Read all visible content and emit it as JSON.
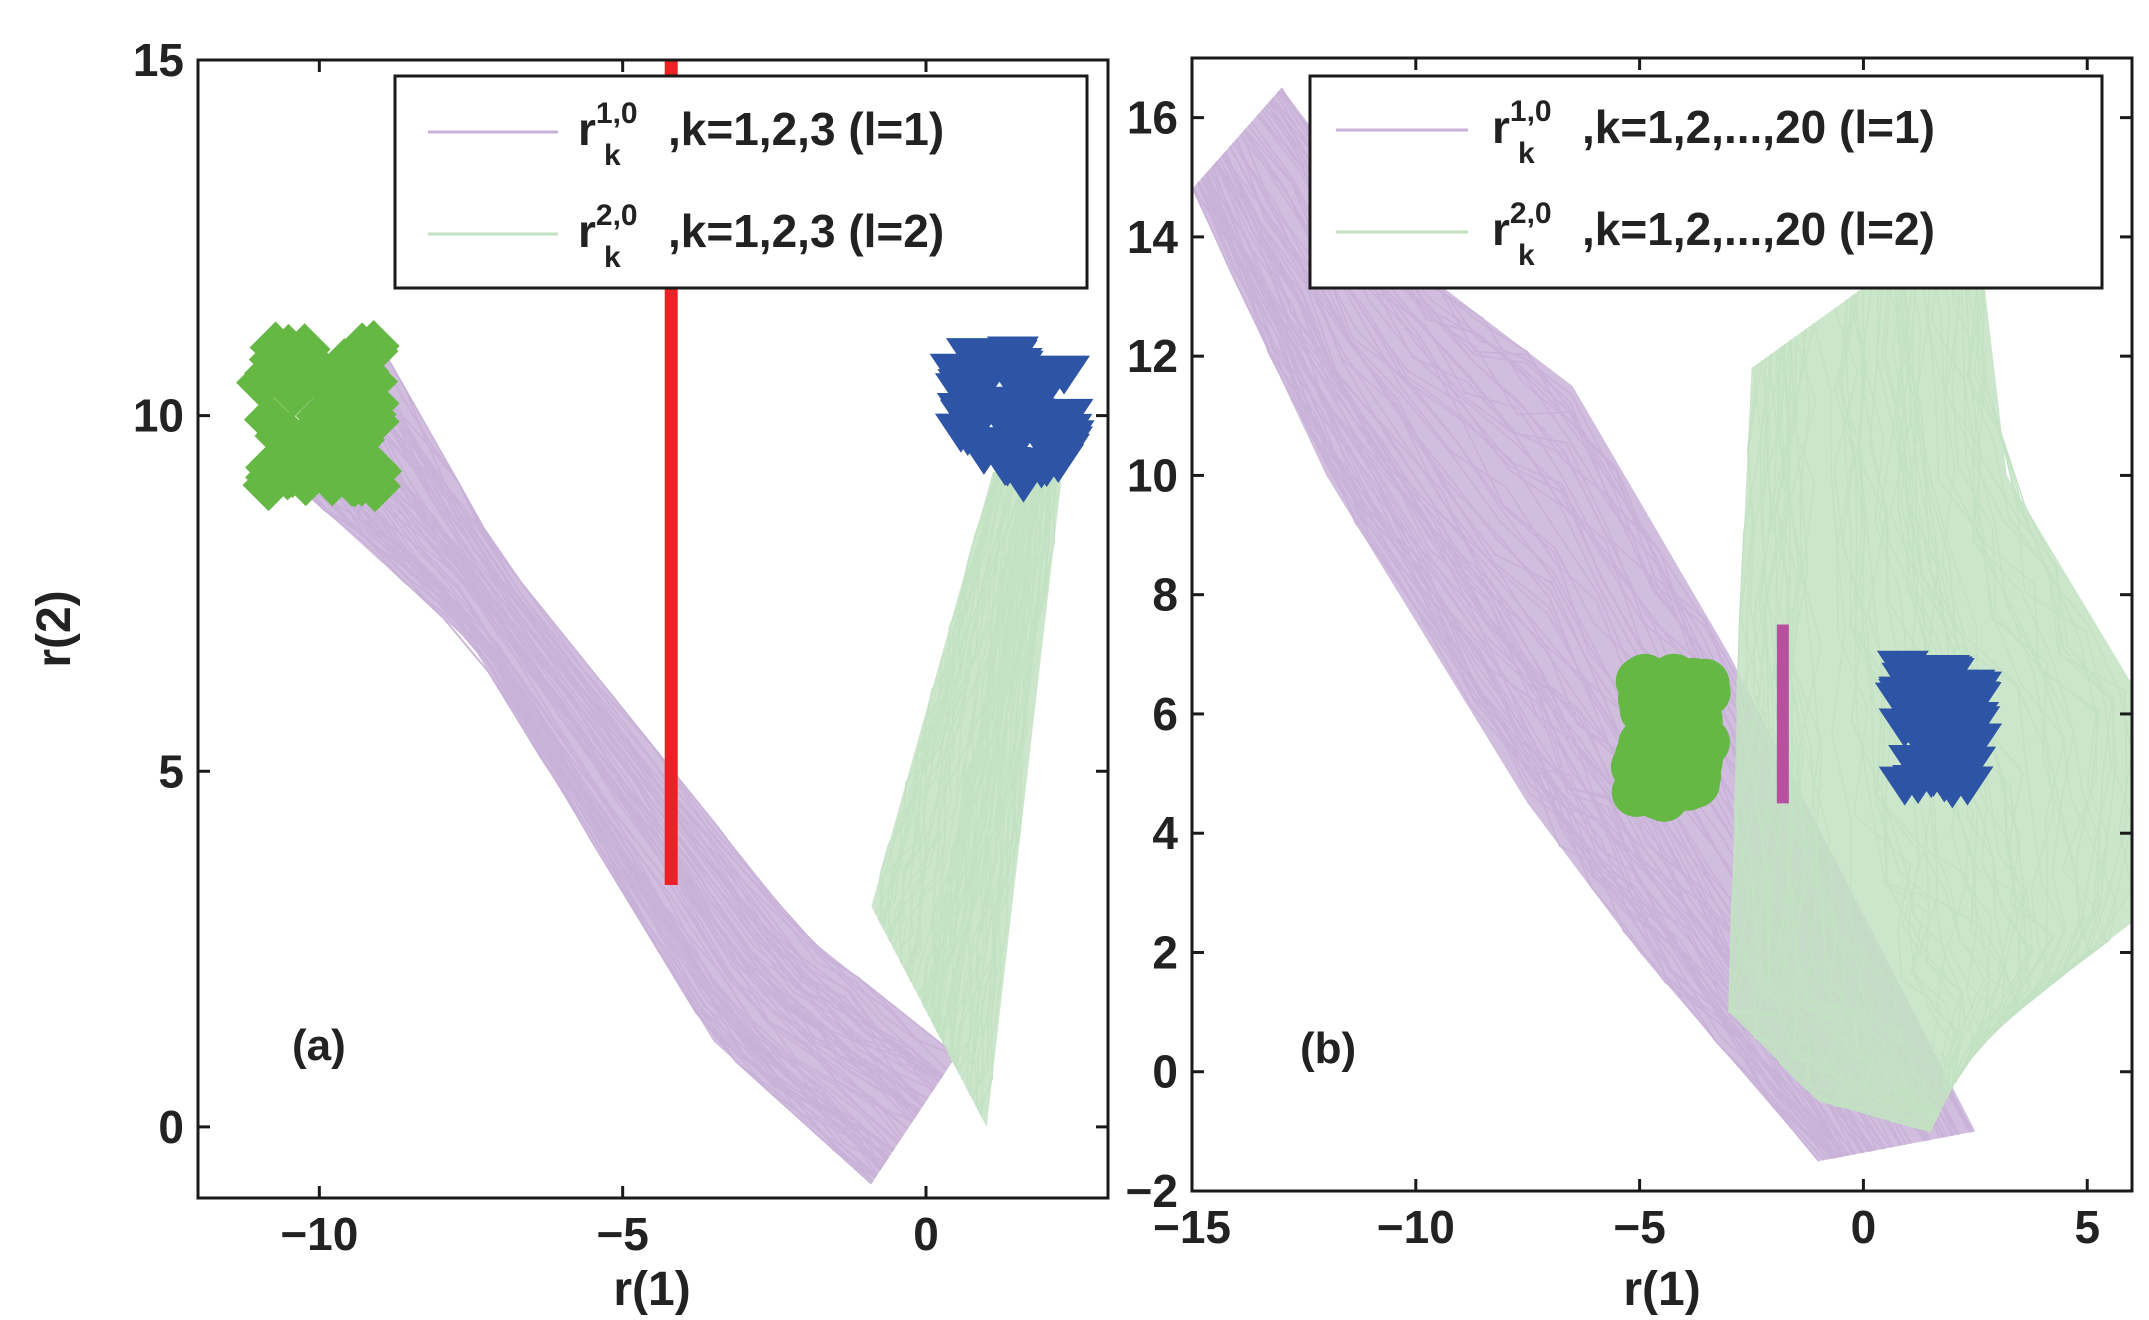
{
  "chart_data": [
    {
      "type": "line",
      "panel": "(a)",
      "xlabel": "r(1)",
      "ylabel": "r(2)",
      "xlim": [
        -12,
        3
      ],
      "ylim": [
        -1,
        15
      ],
      "xticks": [
        -10,
        -5,
        0
      ],
      "yticks": [
        0,
        5,
        10,
        15
      ],
      "xtick_labels": [
        "−10",
        "−5",
        "0"
      ],
      "ytick_labels": [
        "0",
        "5",
        "10",
        "15"
      ],
      "legend": [
        {
          "base": "r",
          "sub": "k",
          "sup": "1,0",
          "rest": ",k=1,2,3 (l=1)",
          "color": "#c9b2d8"
        },
        {
          "base": "r",
          "sub": "k",
          "sup": "2,0",
          "rest": ",k=1,2,3 (l=2)",
          "color": "#c3e2c3"
        }
      ],
      "series": [
        {
          "name": "l=1 trajectories",
          "color": "#c9b2d8",
          "shape": "band",
          "left": [
            [
              -10.6,
              9.2
            ],
            [
              -7.5,
              6.8
            ],
            [
              -3.5,
              1.2
            ],
            [
              -0.9,
              -0.8
            ]
          ],
          "right": [
            [
              -9.0,
              11.0
            ],
            [
              -7.0,
              8.0
            ],
            [
              -2.0,
              2.7
            ],
            [
              0.5,
              1.0
            ]
          ]
        },
        {
          "name": "l=2 trajectories",
          "color": "#c3e2c3",
          "shape": "band",
          "left": [
            [
              -0.9,
              3.1
            ],
            [
              1.1,
              9.2
            ]
          ],
          "right": [
            [
              1.0,
              0.0
            ],
            [
              2.3,
              9.6
            ]
          ]
        },
        {
          "name": "class 1 samples",
          "type": "scatter",
          "marker": "diamond",
          "color": "#66b845",
          "center": [
            -10.0,
            10.0
          ],
          "spread": [
            1.2,
            1.0
          ]
        },
        {
          "name": "class 2 samples",
          "type": "scatter",
          "marker": "triangle-down",
          "color": "#2e55a5",
          "center": [
            1.4,
            10.0
          ],
          "spread": [
            1.2,
            0.9
          ]
        },
        {
          "name": "decision boundary",
          "type": "segment",
          "color": "#ea2226",
          "from": [
            -4.2,
            3.4
          ],
          "to": [
            -4.2,
            15
          ]
        }
      ]
    },
    {
      "type": "line",
      "panel": "(b)",
      "xlabel": "r(1)",
      "ylabel": "",
      "xlim": [
        -15,
        6
      ],
      "ylim": [
        -2,
        17
      ],
      "xticks": [
        -15,
        -10,
        -5,
        0,
        5
      ],
      "yticks": [
        -2,
        0,
        2,
        4,
        6,
        8,
        10,
        12,
        14,
        16
      ],
      "xtick_labels": [
        "−15",
        "−10",
        "−5",
        "0",
        "5"
      ],
      "ytick_labels": [
        "−2",
        "0",
        "2",
        "4",
        "6",
        "8",
        "10",
        "12",
        "14",
        "16"
      ],
      "legend": [
        {
          "base": "r",
          "sub": "k",
          "sup": "1,0",
          "rest": ",k=1,2,...,20 (l=1)",
          "color": "#c9b2d8"
        },
        {
          "base": "r",
          "sub": "k",
          "sup": "2,0",
          "rest": ",k=1,2,...,20 (l=2)",
          "color": "#c3e2c3"
        }
      ],
      "series": [
        {
          "name": "l=1 trajectories",
          "color": "#c9b2d8",
          "shape": "band",
          "left": [
            [
              -15.0,
              14.8
            ],
            [
              -12.0,
              10.0
            ],
            [
              -7.5,
              4.5
            ],
            [
              -5.0,
              2.0
            ],
            [
              -1.0,
              -1.5
            ]
          ],
          "right": [
            [
              -13.0,
              16.5
            ],
            [
              -10.0,
              13.5
            ],
            [
              -6.5,
              11.5
            ],
            [
              -3.0,
              7.0
            ],
            [
              2.5,
              -1.0
            ]
          ]
        },
        {
          "name": "l=2 trajectories",
          "color": "#c3e2c3",
          "shape": "band",
          "left": [
            [
              -2.5,
              11.8
            ],
            [
              -2.8,
              7.0
            ],
            [
              -3.0,
              1.0
            ],
            [
              -1.0,
              -0.5
            ],
            [
              1.5,
              -1.0
            ]
          ],
          "right": [
            [
              2.5,
              14.5
            ],
            [
              3.2,
              10.0
            ],
            [
              6.0,
              6.5
            ],
            [
              6.0,
              2.5
            ],
            [
              2.5,
              0.5
            ]
          ]
        },
        {
          "name": "class 1 samples",
          "type": "scatter",
          "marker": "circle",
          "color": "#66b845",
          "center": [
            -4.3,
            5.6
          ],
          "spread": [
            1.0,
            1.0
          ]
        },
        {
          "name": "class 2 samples",
          "type": "scatter",
          "marker": "triangle-down",
          "color": "#2e55a5",
          "center": [
            1.7,
            5.8
          ],
          "spread": [
            1.1,
            1.0
          ]
        },
        {
          "name": "decision boundary",
          "type": "segment",
          "color": "#b8509f",
          "from": [
            -1.8,
            4.5
          ],
          "to": [
            -1.8,
            7.5
          ]
        }
      ]
    }
  ]
}
